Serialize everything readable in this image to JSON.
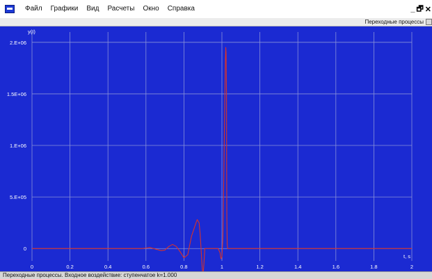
{
  "menubar": {
    "items": [
      "Файл",
      "Графики",
      "Вид",
      "Расчеты",
      "Окно",
      "Справка"
    ],
    "window_controls": [
      "_",
      "🗗",
      "✕"
    ]
  },
  "tab": {
    "label": "Переходные процессы"
  },
  "status": {
    "text": "Переходные процессы. Входное воздействие: ступенчатое k=1.000"
  },
  "colors": {
    "background": "#1b2ad2",
    "grid": "#8890d8",
    "curve": "#d8322a",
    "axis_text": "#ffffff"
  },
  "chart_data": {
    "type": "line",
    "ylabel": "y(t)",
    "xlabel": "t, s",
    "xlim": [
      0,
      2
    ],
    "ylim": [
      -120000,
      2100000
    ],
    "grid": true,
    "x_ticks": [
      "0",
      "0.2",
      "0.4",
      "0.6",
      "0.8",
      "1",
      "1.2",
      "1.4",
      "1.6",
      "1.8",
      "2"
    ],
    "y_ticks": [
      {
        "value": 0,
        "label": "0"
      },
      {
        "value": 500000,
        "label": "5.E+05"
      },
      {
        "value": 1000000,
        "label": "1.E+06"
      },
      {
        "value": 1500000,
        "label": "1.5E+06"
      },
      {
        "value": 2000000,
        "label": "2.E+06"
      }
    ],
    "series": [
      {
        "x": [
          0,
          0.1,
          0.2,
          0.3,
          0.4,
          0.5,
          0.58,
          0.6,
          0.62,
          0.64,
          0.66,
          0.68,
          0.7,
          0.72,
          0.74,
          0.76,
          0.78,
          0.8,
          0.82,
          0.84,
          0.86,
          0.87,
          0.88,
          0.885,
          0.89,
          0.895,
          0.9,
          0.905,
          0.91,
          0.915,
          0.92,
          0.93,
          0.94,
          0.95,
          0.96,
          0.97,
          0.975,
          0.98,
          0.99,
          0.995,
          1.0,
          1.005,
          1.01,
          1.012,
          1.015,
          1.018,
          1.02,
          1.022,
          1.024,
          1.025,
          1.026,
          1.028,
          1.03,
          1.04,
          1.1,
          1.2,
          1.4,
          1.6,
          1.8,
          2.0
        ],
        "y": [
          0,
          0,
          0,
          0,
          0,
          0,
          0,
          5000,
          10000,
          0,
          -10000,
          -20000,
          -15000,
          20000,
          40000,
          20000,
          -30000,
          -90000,
          -60000,
          120000,
          230000,
          280000,
          250000,
          150000,
          0,
          -150000,
          -280000,
          -150000,
          0,
          0,
          0,
          0,
          0,
          0,
          0,
          0,
          0,
          0,
          -40000,
          -100000,
          -80000,
          100000,
          700000,
          1000000,
          1400000,
          1800000,
          1950000,
          1900000,
          1500000,
          800000,
          300000,
          50000,
          0,
          0,
          0,
          0,
          0,
          0,
          0,
          0
        ]
      }
    ]
  }
}
